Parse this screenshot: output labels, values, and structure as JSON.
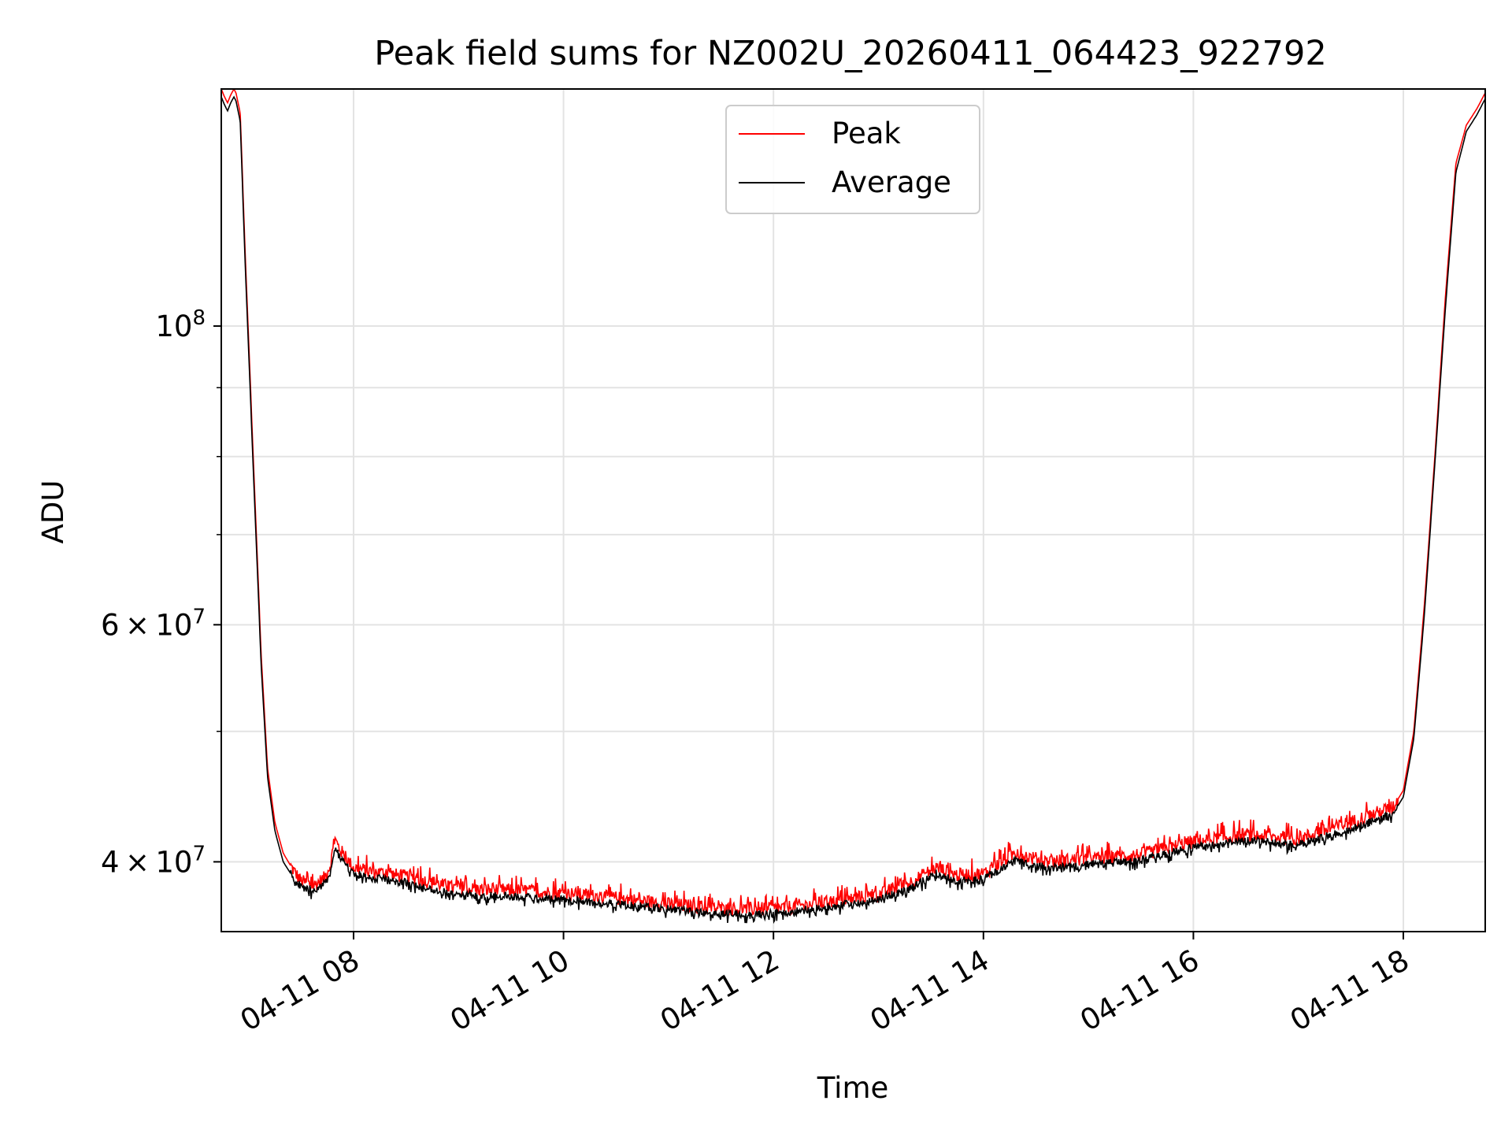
{
  "chart_data": {
    "type": "line",
    "title": "Peak field sums for NZ002U_20260411_064423_922792",
    "xlabel": "Time",
    "ylabel": "ADU",
    "yscale": "log",
    "grid": true,
    "legend_position": "upper center",
    "xlim_hours": [
      6.74,
      18.78
    ],
    "ylim": [
      35500000,
      150000000
    ],
    "x_ticks": [
      {
        "hour": 8,
        "label": "04-11 08"
      },
      {
        "hour": 10,
        "label": "04-11 10"
      },
      {
        "hour": 12,
        "label": "04-11 12"
      },
      {
        "hour": 14,
        "label": "04-11 14"
      },
      {
        "hour": 16,
        "label": "04-11 16"
      },
      {
        "hour": 18,
        "label": "04-11 18"
      }
    ],
    "y_major_ticks": [
      {
        "value": 100000000,
        "base": "10",
        "exp": "8"
      },
      {
        "value": 60000000,
        "mant": "6",
        "base": "10",
        "exp": "7"
      },
      {
        "value": 40000000,
        "mant": "4",
        "base": "10",
        "exp": "7"
      }
    ],
    "y_minor_ticks": [
      50000000,
      70000000,
      80000000,
      90000000
    ],
    "legend_labels": [
      "Peak",
      "Average"
    ],
    "series": [
      {
        "name": "Peak",
        "color": "#ff0000",
        "noise_amplitude": 0.012,
        "x_hours": [
          6.74,
          6.77,
          6.8,
          6.83,
          6.86,
          6.88,
          6.92,
          6.97,
          7.05,
          7.12,
          7.18,
          7.25,
          7.33,
          7.42,
          7.5,
          7.62,
          7.72,
          7.78,
          7.82,
          7.86,
          7.92,
          8.0,
          8.2,
          8.5,
          9.0,
          9.5,
          10.0,
          10.5,
          11.0,
          11.5,
          12.0,
          12.5,
          13.0,
          13.3,
          13.55,
          13.75,
          14.0,
          14.3,
          14.6,
          15.0,
          15.5,
          16.0,
          16.5,
          17.0,
          17.5,
          17.75,
          17.9,
          18.0,
          18.1,
          18.2,
          18.3,
          18.4,
          18.5,
          18.6,
          18.7,
          18.78
        ],
        "values": [
          150000000,
          148000000,
          146500000,
          148500000,
          150000000,
          149000000,
          144000000,
          112000000,
          78000000,
          57000000,
          47000000,
          42800000,
          40600000,
          39500000,
          38700000,
          38400000,
          38900000,
          39800000,
          41600000,
          41000000,
          40300000,
          39600000,
          39300000,
          39000000,
          38200000,
          38100000,
          37900000,
          37600000,
          37200000,
          36900000,
          36900000,
          37300000,
          37800000,
          38600000,
          39600000,
          39100000,
          39200000,
          40600000,
          40000000,
          40200000,
          40500000,
          41400000,
          41900000,
          41600000,
          42800000,
          43500000,
          43900000,
          45200000,
          50000000,
          62000000,
          80000000,
          105000000,
          132000000,
          141000000,
          145000000,
          149000000
        ]
      },
      {
        "name": "Average",
        "color": "#000000",
        "noise_amplitude": 0.007,
        "x_hours": [
          6.74,
          6.77,
          6.8,
          6.83,
          6.86,
          6.88,
          6.92,
          6.97,
          7.05,
          7.12,
          7.18,
          7.25,
          7.33,
          7.42,
          7.5,
          7.62,
          7.72,
          7.78,
          7.82,
          7.86,
          7.92,
          8.0,
          8.2,
          8.5,
          9.0,
          9.5,
          10.0,
          10.5,
          11.0,
          11.5,
          12.0,
          12.5,
          13.0,
          13.3,
          13.55,
          13.75,
          14.0,
          14.3,
          14.6,
          15.0,
          15.5,
          16.0,
          16.5,
          17.0,
          17.5,
          17.75,
          17.9,
          18.0,
          18.1,
          18.2,
          18.3,
          18.4,
          18.5,
          18.6,
          18.7,
          18.78
        ],
        "values": [
          148000000,
          146000000,
          144500000,
          146500000,
          148000000,
          147000000,
          142000000,
          110000000,
          76500000,
          56000000,
          46300000,
          42200000,
          40000000,
          39000000,
          38300000,
          38100000,
          38500000,
          39300000,
          41000000,
          40500000,
          39900000,
          39200000,
          38900000,
          38600000,
          37800000,
          37700000,
          37500000,
          37200000,
          36900000,
          36600000,
          36600000,
          37000000,
          37500000,
          38200000,
          39200000,
          38700000,
          38800000,
          40100000,
          39600000,
          39800000,
          40100000,
          41000000,
          41500000,
          41200000,
          42300000,
          43000000,
          43400000,
          44700000,
          49400000,
          61000000,
          79000000,
          103000000,
          130000000,
          139500000,
          143500000,
          147500000
        ]
      }
    ]
  }
}
